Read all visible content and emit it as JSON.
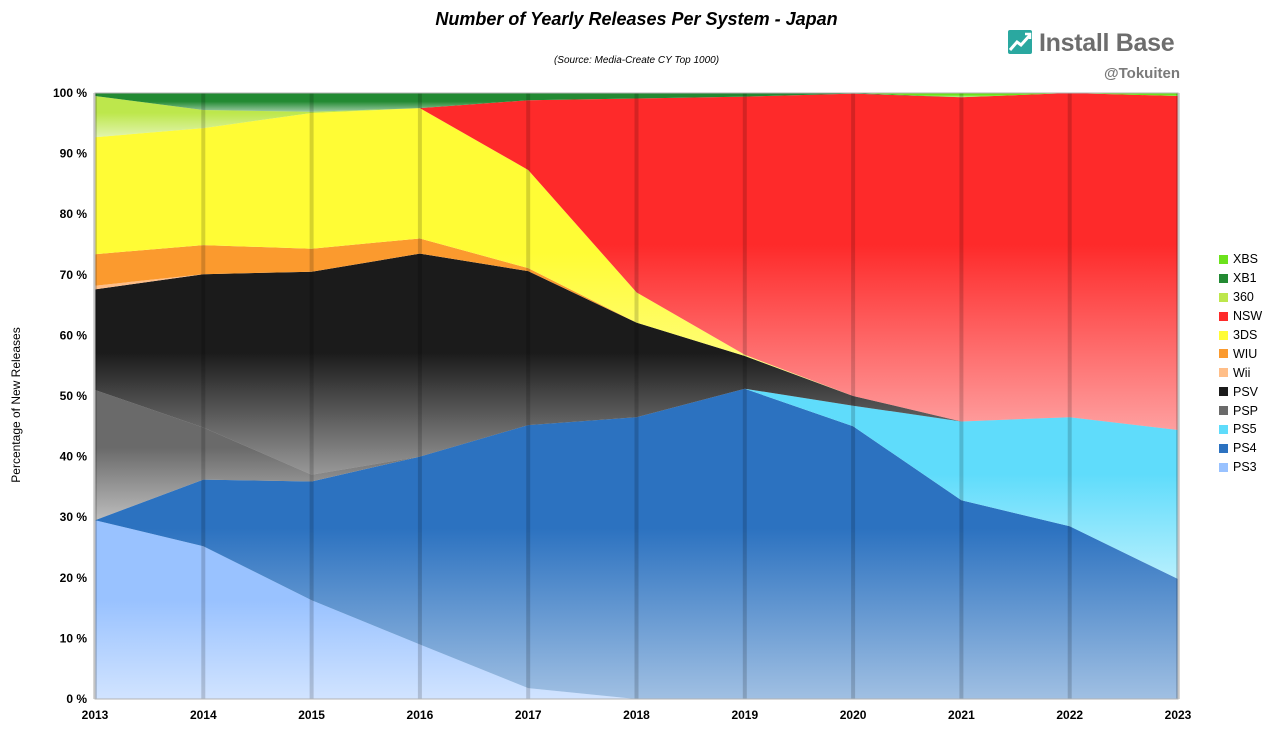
{
  "chart_data": {
    "type": "area",
    "stacked": "percent",
    "title": "Number of Yearly Releases Per System - Japan",
    "subtitle": "(Source: Media-Create CY Top 1000)",
    "ylabel": "Percentage of New Releases",
    "xlabel": "",
    "ylim": [
      0,
      100
    ],
    "y_ticks": [
      "0 %",
      "10 %",
      "20 %",
      "30 %",
      "40 %",
      "50 %",
      "60 %",
      "70 %",
      "80 %",
      "90 %",
      "100 %"
    ],
    "x": [
      "2013",
      "2014",
      "2015",
      "2016",
      "2017",
      "2018",
      "2019",
      "2020",
      "2021",
      "2022",
      "2023"
    ],
    "grid": true,
    "legend_position": "right",
    "series": [
      {
        "name": "PS3",
        "color": "#99c2ff",
        "values": [
          29.5,
          25.2,
          16.3,
          9.0,
          1.8,
          0,
          0,
          0,
          0,
          0,
          0
        ]
      },
      {
        "name": "PS4",
        "color": "#2c72c0",
        "values": [
          0,
          11.0,
          19.6,
          31.0,
          43.4,
          46.5,
          51.2,
          45.0,
          32.8,
          28.5,
          19.8
        ]
      },
      {
        "name": "PS5",
        "color": "#5fdcfb",
        "values": [
          0,
          0,
          0,
          0,
          0,
          0,
          0,
          3.4,
          13.0,
          18.0,
          24.6
        ]
      },
      {
        "name": "PSP",
        "color": "#6a6a6a",
        "values": [
          21.5,
          8.6,
          1.1,
          0,
          0,
          0,
          0,
          0,
          0,
          0,
          0
        ]
      },
      {
        "name": "PSV",
        "color": "#1b1b1b",
        "values": [
          16.6,
          25.3,
          33.5,
          33.5,
          25.4,
          15.6,
          5.4,
          1.6,
          0,
          0,
          0
        ]
      },
      {
        "name": "Wii",
        "color": "#ffbe88",
        "values": [
          0.6,
          0,
          0,
          0,
          0,
          0,
          0,
          0,
          0,
          0,
          0
        ]
      },
      {
        "name": "WIU",
        "color": "#fb9a2e",
        "values": [
          5.2,
          4.8,
          3.8,
          2.5,
          0.5,
          0,
          0,
          0,
          0,
          0,
          0
        ]
      },
      {
        "name": "3DS",
        "color": "#fffc35",
        "values": [
          19.3,
          19.3,
          22.4,
          21.5,
          16.2,
          5.0,
          0.2,
          0,
          0,
          0,
          0
        ]
      },
      {
        "name": "NSW",
        "color": "#fe2a2a",
        "values": [
          0,
          0,
          0,
          0,
          11.5,
          32.0,
          42.6,
          49.9,
          53.5,
          53.5,
          55.1
        ]
      },
      {
        "name": "360",
        "color": "#bde74c",
        "values": [
          6.8,
          3.0,
          0.2,
          0,
          0,
          0,
          0,
          0,
          0,
          0,
          0
        ]
      },
      {
        "name": "XB1",
        "color": "#238a33",
        "values": [
          0.5,
          2.8,
          3.1,
          2.5,
          1.2,
          0.9,
          0.6,
          0.1,
          0,
          0,
          0
        ]
      },
      {
        "name": "XBS",
        "color": "#6ce21c",
        "values": [
          0,
          0,
          0,
          0,
          0,
          0,
          0,
          0,
          0.7,
          0,
          0.5
        ]
      }
    ]
  },
  "brand": {
    "name": "Install Base",
    "handle": "@Tokuiten"
  },
  "legend_order": [
    "XBS",
    "XB1",
    "360",
    "NSW",
    "3DS",
    "WIU",
    "Wii",
    "PSV",
    "PSP",
    "PS5",
    "PS4",
    "PS3"
  ]
}
